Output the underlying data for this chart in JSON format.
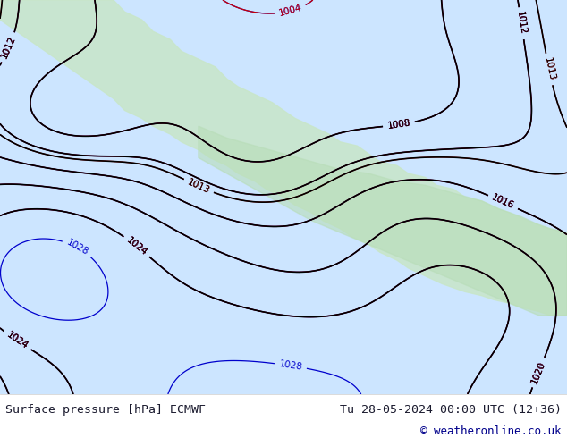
{
  "title": "Surface pressure [hPa] ECMWF",
  "date_str": "Tu 28-05-2024 00:00 UTC (12+36)",
  "copyright": "© weatheronline.co.uk",
  "fig_width": 6.34,
  "fig_height": 4.9,
  "dpi": 100,
  "bg_color": "#ffffff",
  "map_bg": "#e8f4e8",
  "bottom_bar_color": "#ffffff",
  "title_color": "#1a1a2e",
  "date_color": "#1a1a2e",
  "copyright_color": "#00008b",
  "bottom_bar_height": 0.1,
  "isobar_blue_color": "#0000cc",
  "isobar_red_color": "#cc0000",
  "isobar_black_color": "#000000",
  "land_color": "#c8e6c8",
  "ocean_color": "#ddeeff",
  "label_fontsize": 7.5,
  "footer_fontsize": 9.5,
  "copyright_fontsize": 9.0
}
